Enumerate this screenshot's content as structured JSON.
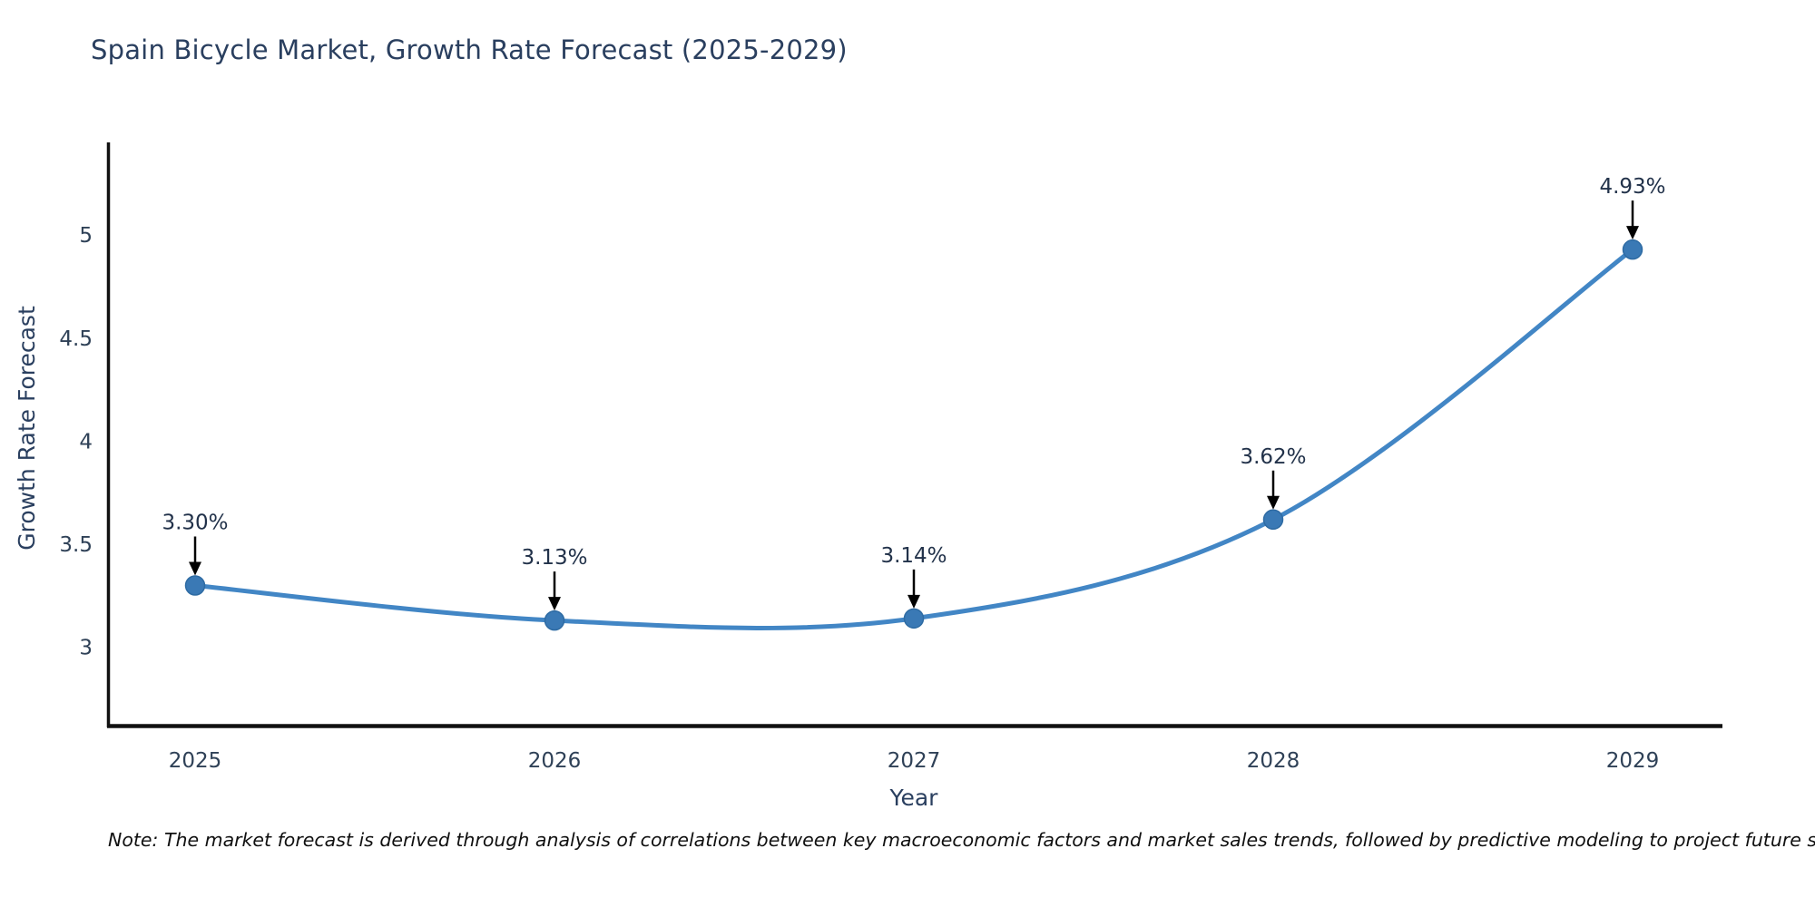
{
  "header": {
    "title": "Spain Bicycle Market, Growth Rate Forecast (2025-2029)"
  },
  "footer": {
    "note": "Note: The market forecast is derived through analysis of correlations between key macroeconomic factors and market sales trends, followed by predictive modeling to project future sales"
  },
  "chart_data": {
    "type": "line",
    "title": "Spain Bicycle Market, Growth Rate Forecast (2025-2029)",
    "xlabel": "Year",
    "ylabel": "Growth Rate Forecast",
    "x": [
      2025,
      2026,
      2027,
      2028,
      2029
    ],
    "categories": [
      "2025",
      "2026",
      "2027",
      "2028",
      "2029"
    ],
    "values": [
      3.3,
      3.13,
      3.14,
      3.62,
      4.93
    ],
    "point_labels": [
      "3.30%",
      "3.13%",
      "3.14%",
      "3.62%",
      "4.93%"
    ],
    "yticks": [
      3,
      3.5,
      4,
      4.5,
      5
    ],
    "ytick_labels": [
      "3",
      "3.5",
      "4",
      "4.5",
      "5"
    ],
    "ylim": [
      2.62,
      5.45
    ],
    "line_shape": "spline",
    "grid": false,
    "legend": "none",
    "annotations_have_arrows": true
  },
  "colors": {
    "title_text": "#2a3f5f",
    "tick_text": "#2f4157",
    "annotation_text": "#22324a",
    "axis_line": "#111111",
    "series_line": "#4286c5",
    "marker_fill": "#3a79b5",
    "marker_edge": "#2e6ba3",
    "arrow": "#000000",
    "note_text": "#101010",
    "background": "#ffffff"
  }
}
